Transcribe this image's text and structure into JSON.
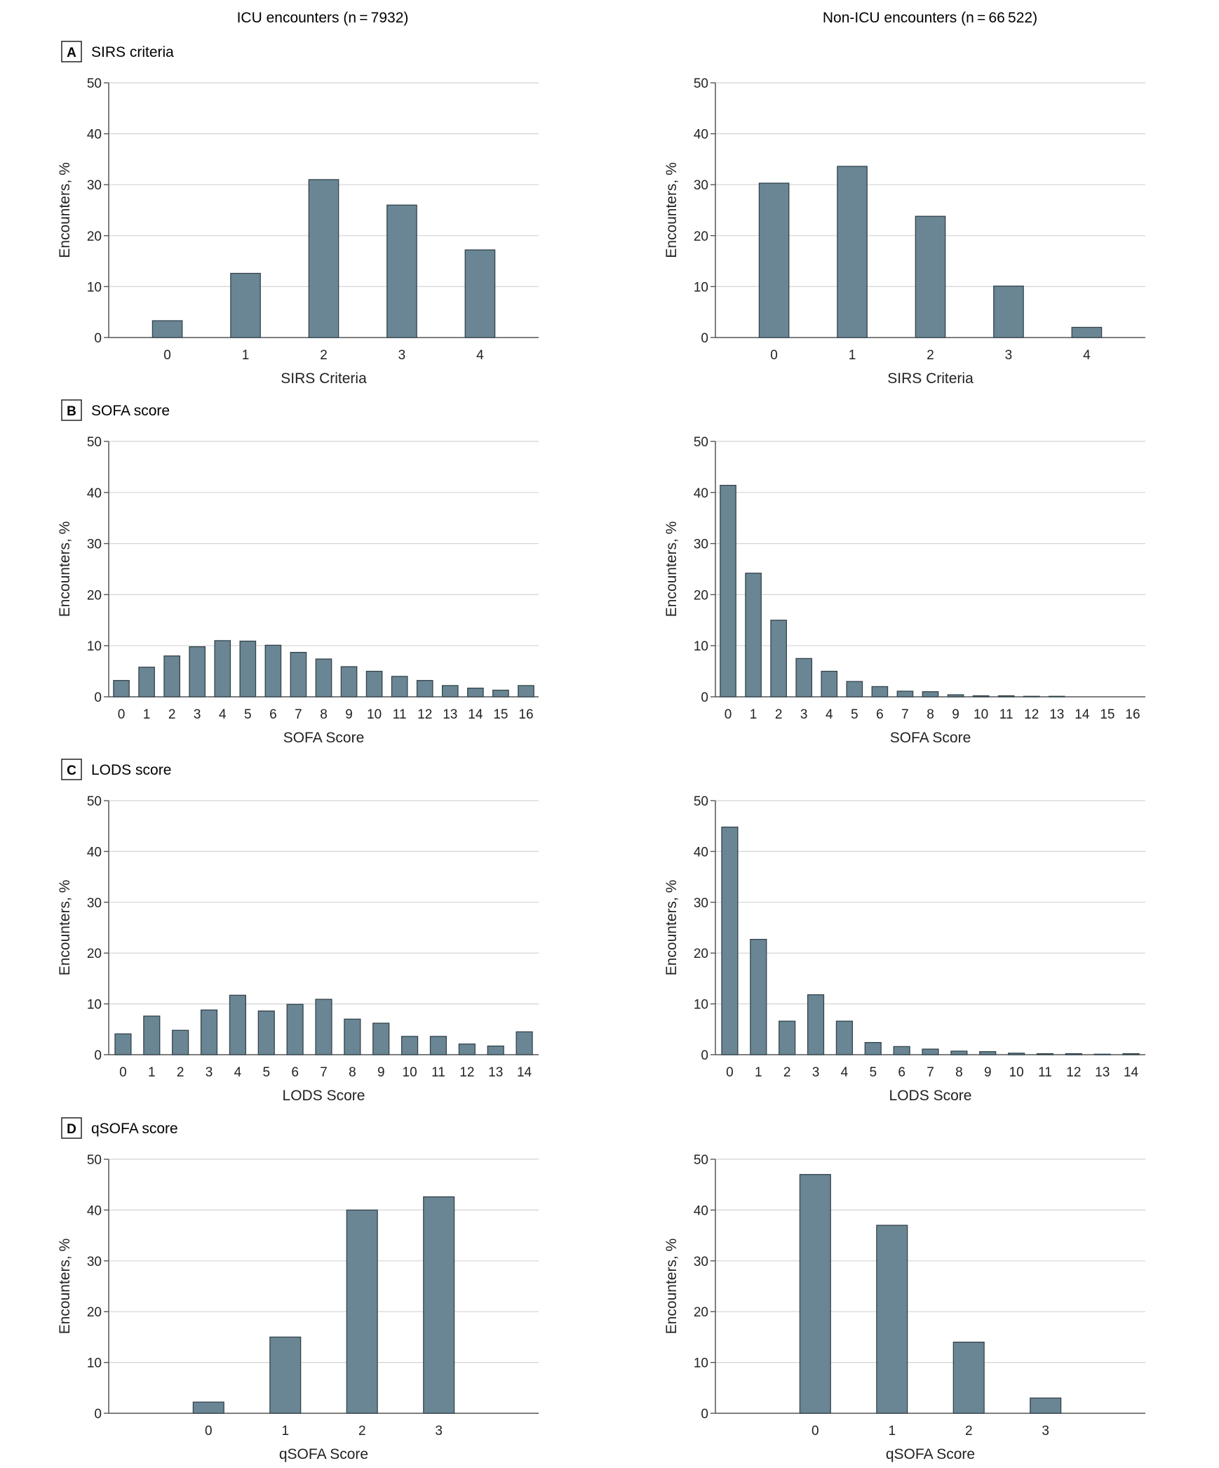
{
  "columns": [
    {
      "header": "ICU encounters (n = 7932)"
    },
    {
      "header": "Non-ICU encounters (n = 66 522)"
    }
  ],
  "panels": [
    {
      "letter": "A",
      "title": "SIRS criteria"
    },
    {
      "letter": "B",
      "title": "SOFA score"
    },
    {
      "letter": "C",
      "title": "LODS score"
    },
    {
      "letter": "D",
      "title": "qSOFA score"
    }
  ],
  "colors": {
    "bar": "#6a8694",
    "bar_edge": "#33434c",
    "grid": "#d4d4d4",
    "axis": "#555555"
  },
  "chart_data": [
    {
      "panel": "A",
      "column": "ICU encounters",
      "type": "bar",
      "categories": [
        "0",
        "1",
        "2",
        "3",
        "4"
      ],
      "values": [
        3.3,
        12.6,
        31.0,
        26.0,
        17.2
      ],
      "xlabel": "SIRS Criteria",
      "ylabel": "Encounters, %",
      "ylim": [
        0,
        50
      ],
      "yticks": [
        0,
        10,
        20,
        30,
        40,
        50
      ],
      "grid": true
    },
    {
      "panel": "A",
      "column": "Non-ICU encounters",
      "type": "bar",
      "categories": [
        "0",
        "1",
        "2",
        "3",
        "4"
      ],
      "values": [
        30.3,
        33.6,
        23.8,
        10.1,
        2.0
      ],
      "xlabel": "SIRS Criteria",
      "ylabel": "Encounters, %",
      "ylim": [
        0,
        50
      ],
      "yticks": [
        0,
        10,
        20,
        30,
        40,
        50
      ],
      "grid": true
    },
    {
      "panel": "B",
      "column": "ICU encounters",
      "type": "bar",
      "categories": [
        "0",
        "1",
        "2",
        "3",
        "4",
        "5",
        "6",
        "7",
        "8",
        "9",
        "10",
        "11",
        "12",
        "13",
        "14",
        "15",
        "16"
      ],
      "values": [
        3.2,
        5.8,
        8.0,
        9.8,
        11.0,
        10.9,
        10.1,
        8.7,
        7.4,
        5.9,
        5.0,
        4.0,
        3.2,
        2.2,
        1.7,
        1.3,
        2.2
      ],
      "xlabel": "SOFA Score",
      "ylabel": "Encounters, %",
      "ylim": [
        0,
        50
      ],
      "yticks": [
        0,
        10,
        20,
        30,
        40,
        50
      ],
      "grid": true
    },
    {
      "panel": "B",
      "column": "Non-ICU encounters",
      "type": "bar",
      "categories": [
        "0",
        "1",
        "2",
        "3",
        "4",
        "5",
        "6",
        "7",
        "8",
        "9",
        "10",
        "11",
        "12",
        "13",
        "14",
        "15",
        "16"
      ],
      "values": [
        41.4,
        24.2,
        15.0,
        7.5,
        5.0,
        3.0,
        2.0,
        1.1,
        1.0,
        0.4,
        0.2,
        0.2,
        0.1,
        0.1,
        0.0,
        0.0,
        0.0
      ],
      "xlabel": "SOFA Score",
      "ylabel": "Encounters, %",
      "ylim": [
        0,
        50
      ],
      "yticks": [
        0,
        10,
        20,
        30,
        40,
        50
      ],
      "grid": true
    },
    {
      "panel": "C",
      "column": "ICU encounters",
      "type": "bar",
      "categories": [
        "0",
        "1",
        "2",
        "3",
        "4",
        "5",
        "6",
        "7",
        "8",
        "9",
        "10",
        "11",
        "12",
        "13",
        "14"
      ],
      "values": [
        4.1,
        7.6,
        4.8,
        8.8,
        11.7,
        8.6,
        9.9,
        10.9,
        7.0,
        6.2,
        3.6,
        3.6,
        2.1,
        1.7,
        4.5
      ],
      "xlabel": "LODS Score",
      "ylabel": "Encounters, %",
      "ylim": [
        0,
        50
      ],
      "yticks": [
        0,
        10,
        20,
        30,
        40,
        50
      ],
      "grid": true
    },
    {
      "panel": "C",
      "column": "Non-ICU encounters",
      "type": "bar",
      "categories": [
        "0",
        "1",
        "2",
        "3",
        "4",
        "5",
        "6",
        "7",
        "8",
        "9",
        "10",
        "11",
        "12",
        "13",
        "14"
      ],
      "values": [
        44.8,
        22.7,
        6.6,
        11.8,
        6.6,
        2.4,
        1.6,
        1.1,
        0.7,
        0.6,
        0.3,
        0.2,
        0.2,
        0.1,
        0.2
      ],
      "xlabel": "LODS Score",
      "ylabel": "Encounters, %",
      "ylim": [
        0,
        50
      ],
      "yticks": [
        0,
        10,
        20,
        30,
        40,
        50
      ],
      "grid": true
    },
    {
      "panel": "D",
      "column": "ICU encounters",
      "type": "bar",
      "categories": [
        "0",
        "1",
        "2",
        "3"
      ],
      "values": [
        2.2,
        15.0,
        40.0,
        42.6
      ],
      "xlabel": "qSOFA Score",
      "ylabel": "Encounters, %",
      "ylim": [
        0,
        50
      ],
      "yticks": [
        0,
        10,
        20,
        30,
        40,
        50
      ],
      "grid": true
    },
    {
      "panel": "D",
      "column": "Non-ICU encounters",
      "type": "bar",
      "categories": [
        "0",
        "1",
        "2",
        "3"
      ],
      "values": [
        47.0,
        37.0,
        14.0,
        3.0
      ],
      "xlabel": "qSOFA Score",
      "ylabel": "Encounters, %",
      "ylim": [
        0,
        50
      ],
      "yticks": [
        0,
        10,
        20,
        30,
        40,
        50
      ],
      "grid": true
    }
  ]
}
